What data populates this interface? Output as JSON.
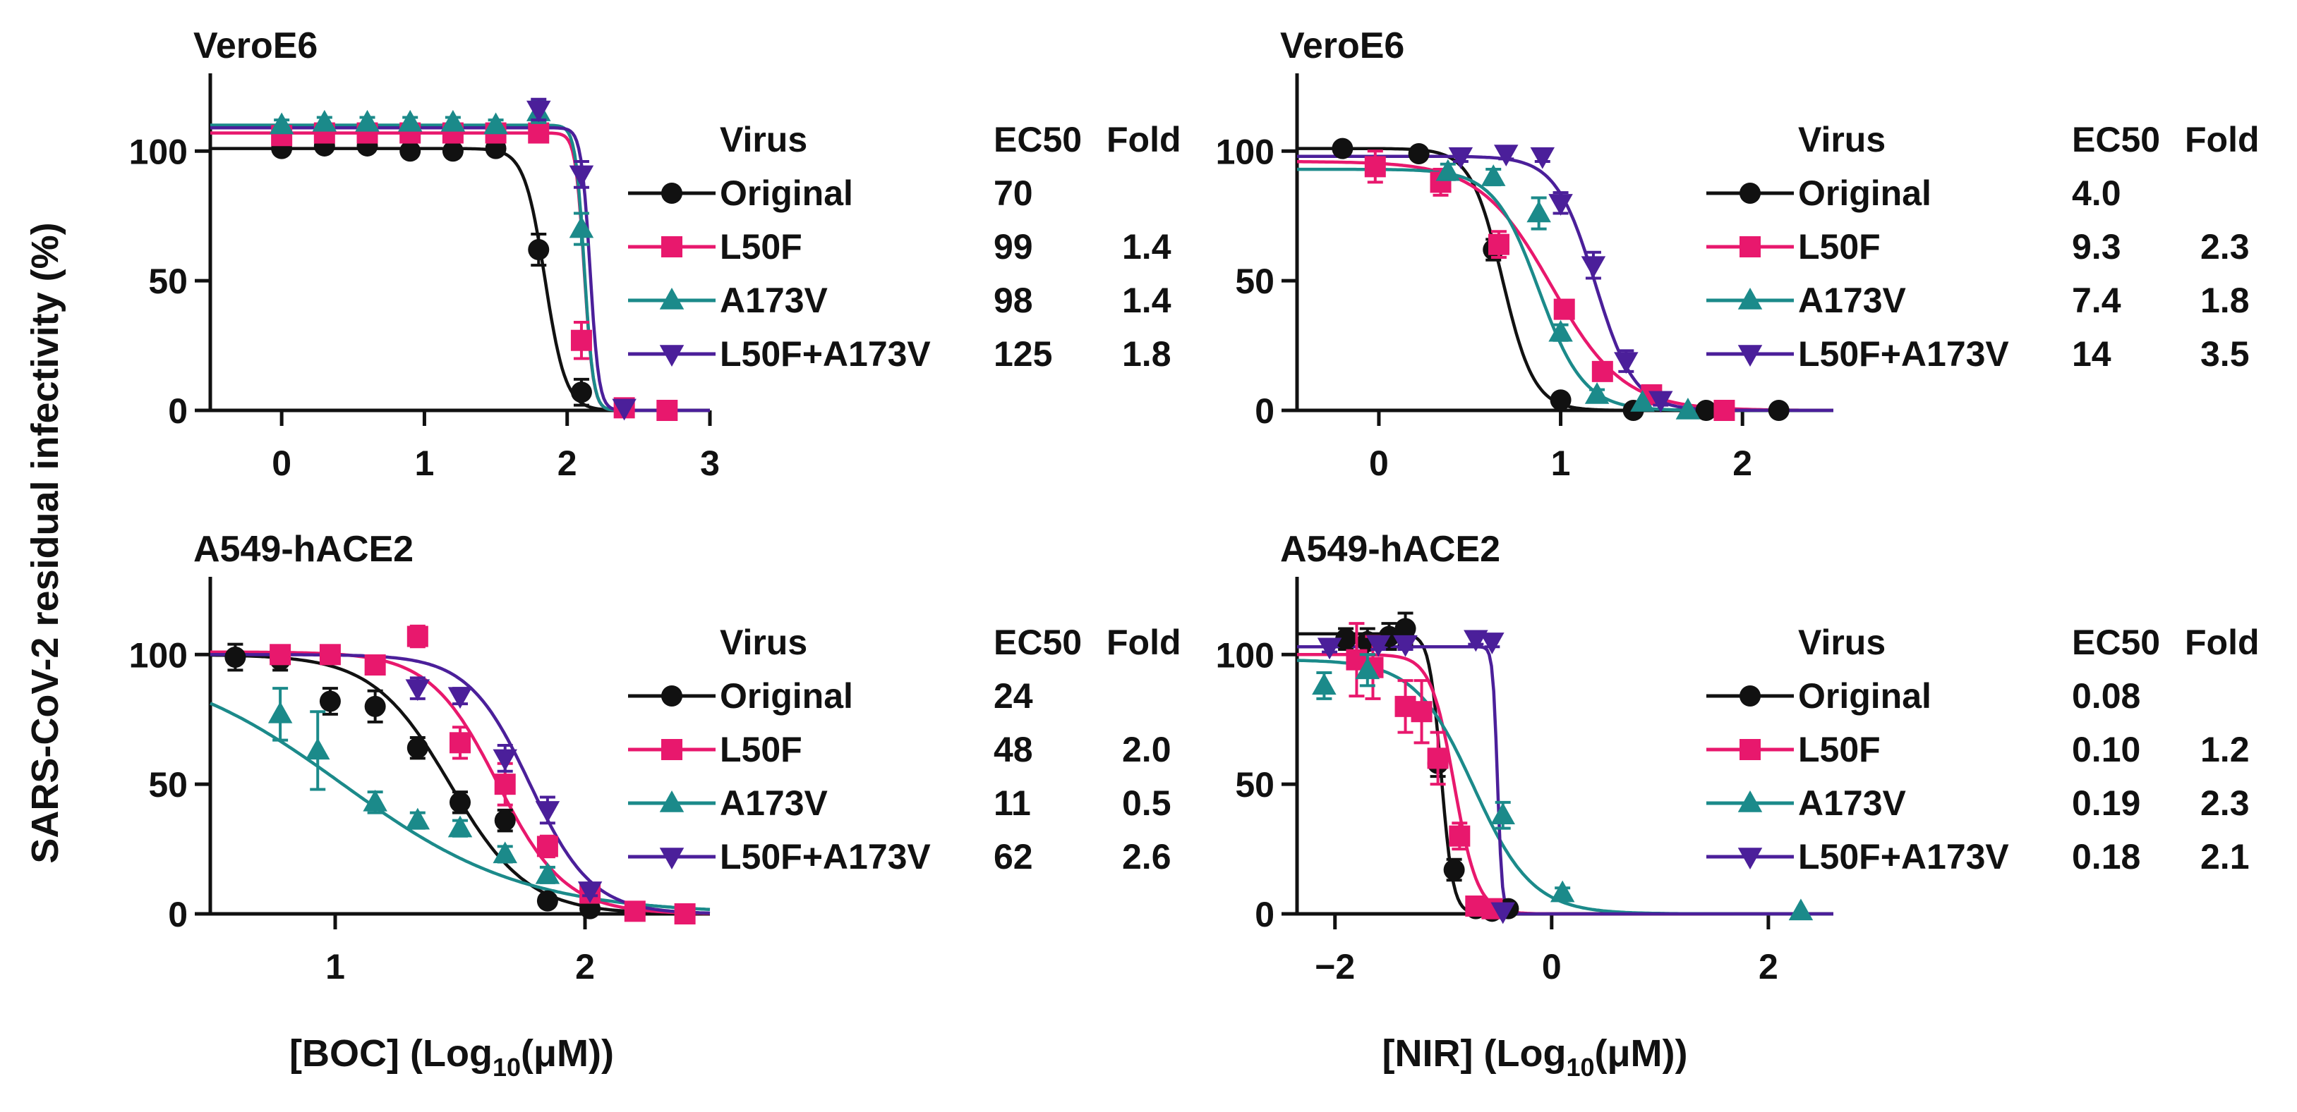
{
  "figure": {
    "ylabel": "SARS-CoV-2 residual infectivity (%)",
    "legend_headers": {
      "virus": "Virus",
      "ec50": "EC50",
      "fold": "Fold"
    },
    "colors": {
      "Original": "#111111",
      "L50F": "#e8186d",
      "A173V": "#1b8a8a",
      "L50F+A173V": "#4b1f9a"
    },
    "markers": {
      "Original": "circle",
      "L50F": "square",
      "A173V": "triangle-up",
      "L50F+A173V": "triangle-down"
    },
    "xlabel_parts": {
      "boc_prefix": "[BOC] (Log",
      "nir_prefix": "[NIR] (Log",
      "sub": "10",
      "suffix": "(μM))"
    }
  },
  "chart_data": [
    {
      "type": "scatter",
      "id": "boc-vero",
      "title": "VeroE6",
      "xlabel": "[BOC] (Log10(μM))",
      "ylabel": "SARS-CoV-2 residual infectivity (%)",
      "xlim": [
        -0.5,
        3
      ],
      "ylim": [
        0,
        130
      ],
      "xticks": [
        0,
        1,
        2,
        3
      ],
      "yticks": [
        0,
        50,
        100
      ],
      "legend": [
        {
          "virus": "Original",
          "ec50": "70",
          "fold": ""
        },
        {
          "virus": "L50F",
          "ec50": "99",
          "fold": "1.4"
        },
        {
          "virus": "A173V",
          "ec50": "98",
          "fold": "1.4"
        },
        {
          "virus": "L50F+A173V",
          "ec50": "125",
          "fold": "1.8"
        }
      ],
      "series": [
        {
          "name": "Original",
          "top": 101,
          "bottom": 0,
          "logec50": 1.845,
          "hill": 6,
          "x": [
            0,
            0.3,
            0.6,
            0.9,
            1.2,
            1.5,
            1.8,
            2.1
          ],
          "y": [
            101,
            102,
            102,
            100,
            100,
            101,
            62,
            7
          ],
          "err": [
            2,
            2,
            2,
            2,
            2,
            2,
            6,
            5
          ]
        },
        {
          "name": "L50F",
          "top": 107,
          "bottom": 0,
          "logec50": 2.12,
          "hill": 14,
          "x": [
            0,
            0.3,
            0.6,
            0.9,
            1.2,
            1.5,
            1.8,
            2.1,
            2.4,
            2.7
          ],
          "y": [
            106,
            107,
            107,
            107,
            107,
            107,
            107,
            27,
            1,
            0
          ],
          "err": [
            2,
            2,
            2,
            2,
            2,
            2,
            2,
            7,
            1,
            1
          ]
        },
        {
          "name": "A173V",
          "top": 110,
          "bottom": 0,
          "logec50": 2.12,
          "hill": 14,
          "x": [
            0,
            0.3,
            0.6,
            0.9,
            1.2,
            1.5,
            1.8,
            2.1
          ],
          "y": [
            110,
            111,
            111,
            111,
            111,
            110,
            115,
            70
          ],
          "err": [
            2,
            2,
            2,
            2,
            2,
            2,
            4,
            6
          ]
        },
        {
          "name": "L50F+A173V",
          "top": 109,
          "bottom": 0,
          "logec50": 2.16,
          "hill": 14,
          "x": [
            1.8,
            2.1,
            2.4
          ],
          "y": [
            116,
            91,
            1
          ],
          "err": [
            4,
            5,
            1
          ]
        }
      ]
    },
    {
      "type": "scatter",
      "id": "nir-vero",
      "title": "VeroE6",
      "xlabel": "[NIR] (Log10(μM))",
      "ylabel": "SARS-CoV-2 residual infectivity (%)",
      "xlim": [
        -0.45,
        2.5
      ],
      "ylim": [
        0,
        130
      ],
      "xticks": [
        0,
        1,
        2
      ],
      "yticks": [
        0,
        50,
        100
      ],
      "legend": [
        {
          "virus": "Original",
          "ec50": "4.0",
          "fold": ""
        },
        {
          "virus": "L50F",
          "ec50": "9.3",
          "fold": "2.3"
        },
        {
          "virus": "A173V",
          "ec50": "7.4",
          "fold": "1.8"
        },
        {
          "virus": "L50F+A173V",
          "ec50": "14",
          "fold": "3.5"
        }
      ],
      "series": [
        {
          "name": "Original",
          "top": 101,
          "bottom": 0,
          "logec50": 0.68,
          "hill": 5,
          "x": [
            -0.2,
            0.22,
            0.63,
            1.0,
            1.4,
            1.8,
            2.2
          ],
          "y": [
            101,
            99,
            62,
            4,
            0,
            0,
            0
          ],
          "err": [
            2,
            2,
            4,
            2,
            1,
            1,
            1
          ]
        },
        {
          "name": "L50F",
          "top": 96,
          "bottom": 0,
          "logec50": 0.95,
          "hill": 2.2,
          "x": [
            -0.02,
            0.34,
            0.66,
            1.02,
            1.23,
            1.5,
            1.9
          ],
          "y": [
            94,
            88,
            64,
            39,
            15,
            6,
            0
          ],
          "err": [
            6,
            5,
            5,
            3,
            3,
            2,
            1
          ]
        },
        {
          "name": "A173V",
          "top": 93,
          "bottom": 0,
          "logec50": 0.88,
          "hill": 3.5,
          "x": [
            0.38,
            0.63,
            0.88,
            1.0,
            1.2,
            1.45,
            1.7
          ],
          "y": [
            92,
            90,
            76,
            30,
            6,
            3,
            0
          ],
          "err": [
            3,
            3,
            6,
            3,
            2,
            1,
            1
          ]
        },
        {
          "name": "L50F+A173V",
          "top": 98,
          "bottom": 0,
          "logec50": 1.19,
          "hill": 4,
          "x": [
            0.45,
            0.7,
            0.9,
            1.0,
            1.18,
            1.36,
            1.55
          ],
          "y": [
            98,
            99,
            98,
            80,
            56,
            19,
            4
          ],
          "err": [
            2,
            2,
            2,
            4,
            5,
            4,
            2
          ]
        }
      ]
    },
    {
      "type": "scatter",
      "id": "boc-a549",
      "title": "A549-hACE2",
      "xlabel": "[BOC] (Log10(μM))",
      "ylabel": "SARS-CoV-2 residual infectivity (%)",
      "xlim": [
        0.5,
        2.5
      ],
      "ylim": [
        0,
        130
      ],
      "xticks": [
        1,
        2
      ],
      "yticks": [
        0,
        50,
        100
      ],
      "legend": [
        {
          "virus": "Original",
          "ec50": "24",
          "fold": ""
        },
        {
          "virus": "L50F",
          "ec50": "48",
          "fold": "2.0"
        },
        {
          "virus": "A173V",
          "ec50": "11",
          "fold": "0.5"
        },
        {
          "virus": "L50F+A173V",
          "ec50": "62",
          "fold": "2.6"
        }
      ],
      "series": [
        {
          "name": "Original",
          "top": 100,
          "bottom": 0,
          "logec50": 1.46,
          "hill": 2.8,
          "x": [
            0.6,
            0.78,
            0.98,
            1.16,
            1.33,
            1.5,
            1.68,
            1.85,
            2.02
          ],
          "y": [
            99,
            98,
            82,
            80,
            64,
            43,
            36,
            5,
            2
          ],
          "err": [
            5,
            4,
            5,
            6,
            4,
            4,
            4,
            1,
            1
          ]
        },
        {
          "name": "L50F",
          "top": 101,
          "bottom": 0,
          "logec50": 1.65,
          "hill": 3.2,
          "x": [
            0.78,
            0.98,
            1.16,
            1.33,
            1.5,
            1.68,
            1.85,
            2.02,
            2.2,
            2.4
          ],
          "y": [
            100,
            100,
            96,
            107,
            66,
            50,
            26,
            8,
            1,
            0
          ],
          "err": [
            2,
            2,
            3,
            4,
            6,
            8,
            4,
            2,
            1,
            1
          ]
        },
        {
          "name": "A173V",
          "top": 100,
          "bottom": 0,
          "logec50": 1.03,
          "hill": 1.2,
          "x": [
            0.78,
            0.93,
            1.16,
            1.33,
            1.5,
            1.68,
            1.85
          ],
          "y": [
            77,
            63,
            43,
            36,
            33,
            23,
            15
          ],
          "err": [
            10,
            15,
            4,
            3,
            3,
            3,
            3
          ]
        },
        {
          "name": "L50F+A173V",
          "top": 100,
          "bottom": 0,
          "logec50": 1.78,
          "hill": 3.5,
          "x": [
            1.33,
            1.5,
            1.68,
            1.85,
            2.02
          ],
          "y": [
            87,
            84,
            60,
            40,
            9
          ],
          "err": [
            4,
            3,
            5,
            5,
            2
          ]
        }
      ]
    },
    {
      "type": "scatter",
      "id": "nir-a549",
      "title": "A549-hACE2",
      "xlabel": "[NIR] (Log10(μM))",
      "ylabel": "SARS-CoV-2 residual infectivity (%)",
      "xlim": [
        -2.35,
        2.6
      ],
      "ylim": [
        0,
        130
      ],
      "xticks": [
        -2,
        0,
        2
      ],
      "xtick_labels": [
        "−2",
        "0",
        "2"
      ],
      "yticks": [
        0,
        50,
        100
      ],
      "legend": [
        {
          "virus": "Original",
          "ec50": "0.08",
          "fold": ""
        },
        {
          "virus": "L50F",
          "ec50": "0.10",
          "fold": "1.2"
        },
        {
          "virus": "A173V",
          "ec50": "0.19",
          "fold": "2.3"
        },
        {
          "virus": "L50F+A173V",
          "ec50": "0.18",
          "fold": "2.1"
        }
      ],
      "series": [
        {
          "name": "Original",
          "top": 108,
          "bottom": 0,
          "logec50": -1.02,
          "hill": 8,
          "x": [
            -1.9,
            -1.7,
            -1.5,
            -1.35,
            -1.05,
            -0.9,
            -0.7,
            -0.55,
            -0.4
          ],
          "y": [
            106,
            105,
            107,
            110,
            58,
            17,
            2,
            1,
            2
          ],
          "err": [
            4,
            5,
            5,
            6,
            5,
            4,
            1,
            1,
            1
          ]
        },
        {
          "name": "L50F",
          "top": 100,
          "bottom": 0,
          "logec50": -0.9,
          "hill": 4,
          "x": [
            -1.8,
            -1.65,
            -1.35,
            -1.2,
            -1.05,
            -0.85,
            -0.7,
            -0.55
          ],
          "y": [
            98,
            95,
            80,
            78,
            60,
            30,
            3,
            2
          ],
          "err": [
            14,
            12,
            10,
            12,
            10,
            5,
            2,
            1
          ]
        },
        {
          "name": "A173V",
          "top": 98,
          "bottom": 0,
          "logec50": -0.72,
          "hill": 1.6,
          "x": [
            -2.1,
            -1.7,
            -0.45,
            0.1,
            2.3
          ],
          "y": [
            88,
            94,
            38,
            8,
            1
          ],
          "err": [
            5,
            6,
            5,
            2,
            1
          ]
        },
        {
          "name": "L50F+A173V",
          "top": 103,
          "bottom": 0,
          "logec50": -0.5,
          "hill": 20,
          "x": [
            -2.05,
            -1.6,
            -1.35,
            -0.7,
            -0.55,
            -0.45
          ],
          "y": [
            103,
            104,
            104,
            106,
            105,
            1
          ],
          "err": [
            2,
            2,
            2,
            2,
            2,
            1
          ]
        }
      ]
    }
  ]
}
